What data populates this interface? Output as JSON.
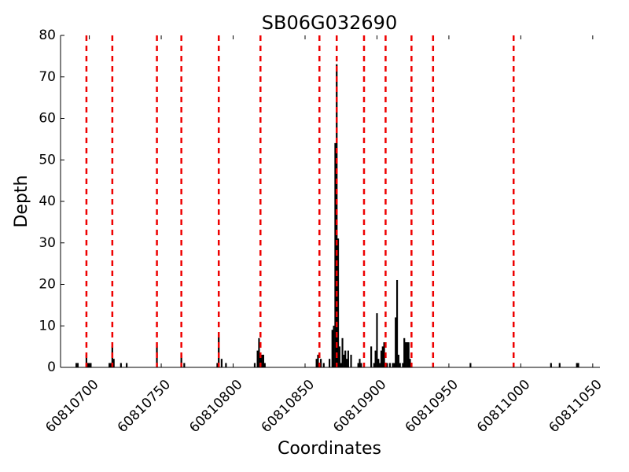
{
  "chart_data": {
    "type": "bar",
    "title": "SB06G032690",
    "xlabel": "Coordinates",
    "ylabel": "Depth",
    "xlim": [
      60810680,
      60811055
    ],
    "ylim": [
      0,
      80
    ],
    "xticks": [
      {
        "value": 60810700,
        "label": "60810700"
      },
      {
        "value": 60810750,
        "label": "60810750"
      },
      {
        "value": 60810800,
        "label": "60810800"
      },
      {
        "value": 60810850,
        "label": "60810850"
      },
      {
        "value": 60810900,
        "label": "60810900"
      },
      {
        "value": 60810950,
        "label": "60810950"
      },
      {
        "value": 60811000,
        "label": "60811000"
      },
      {
        "value": 60811050,
        "label": "60811050"
      }
    ],
    "yticks": [
      {
        "value": 0,
        "label": "0"
      },
      {
        "value": 10,
        "label": "10"
      },
      {
        "value": 20,
        "label": "20"
      },
      {
        "value": 30,
        "label": "30"
      },
      {
        "value": 40,
        "label": "40"
      },
      {
        "value": 50,
        "label": "50"
      },
      {
        "value": 60,
        "label": "60"
      },
      {
        "value": 70,
        "label": "70"
      },
      {
        "value": 80,
        "label": "80"
      }
    ],
    "grid": false,
    "bar_color": "#000000",
    "marker_color": "#ee0000",
    "bars": [
      [
        60810691,
        1
      ],
      [
        60810692,
        1
      ],
      [
        60810698,
        3
      ],
      [
        60810699,
        1
      ],
      [
        60810700,
        1
      ],
      [
        60810701,
        1
      ],
      [
        60810714,
        1
      ],
      [
        60810715,
        1
      ],
      [
        60810716,
        5
      ],
      [
        60810717,
        2
      ],
      [
        60810722,
        1
      ],
      [
        60810726,
        1
      ],
      [
        60810747,
        5
      ],
      [
        60810764,
        3
      ],
      [
        60810766,
        1
      ],
      [
        60810789,
        1
      ],
      [
        60810790,
        8
      ],
      [
        60810792,
        2
      ],
      [
        60810795,
        1
      ],
      [
        60810815,
        1
      ],
      [
        60810817,
        4
      ],
      [
        60810818,
        7
      ],
      [
        60810819,
        3
      ],
      [
        60810820,
        3
      ],
      [
        60810821,
        3
      ],
      [
        60810822,
        1
      ],
      [
        60810858,
        2
      ],
      [
        60810859,
        3
      ],
      [
        60810861,
        2
      ],
      [
        60810863,
        1
      ],
      [
        60810867,
        2
      ],
      [
        60810869,
        9
      ],
      [
        60810870,
        10
      ],
      [
        60810871,
        54
      ],
      [
        60810872,
        73
      ],
      [
        60810873,
        31
      ],
      [
        60810874,
        5
      ],
      [
        60810875,
        1
      ],
      [
        60810876,
        7
      ],
      [
        60810877,
        3
      ],
      [
        60810878,
        4
      ],
      [
        60810879,
        2
      ],
      [
        60810880,
        4
      ],
      [
        60810882,
        3
      ],
      [
        60810887,
        1
      ],
      [
        60810888,
        2
      ],
      [
        60810889,
        1
      ],
      [
        60810896,
        5
      ],
      [
        60810898,
        1
      ],
      [
        60810899,
        4
      ],
      [
        60810900,
        13
      ],
      [
        60810901,
        2
      ],
      [
        60810902,
        1
      ],
      [
        60810903,
        4
      ],
      [
        60810904,
        5
      ],
      [
        60810905,
        6
      ],
      [
        60810906,
        1
      ],
      [
        60810907,
        1
      ],
      [
        60810909,
        1
      ],
      [
        60810911,
        1
      ],
      [
        60810912,
        1
      ],
      [
        60810913,
        12
      ],
      [
        60810914,
        21
      ],
      [
        60810915,
        3
      ],
      [
        60810916,
        1
      ],
      [
        60810918,
        1
      ],
      [
        60810919,
        7
      ],
      [
        60810920,
        6
      ],
      [
        60810921,
        6
      ],
      [
        60810922,
        6
      ],
      [
        60810923,
        2
      ],
      [
        60810965,
        1
      ],
      [
        60811021,
        1
      ],
      [
        60811027,
        1
      ],
      [
        60811039,
        1
      ],
      [
        60811040,
        1
      ]
    ],
    "markers": [
      60810698,
      60810716,
      60810747,
      60810764,
      60810790,
      60810819,
      60810860,
      60810872,
      60810891,
      60810906,
      60810924,
      60810939,
      60810995
    ]
  }
}
